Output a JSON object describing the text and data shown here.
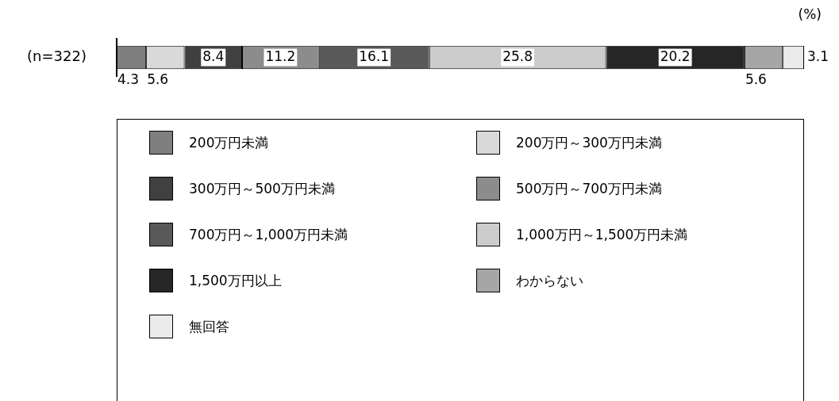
{
  "chart_data": {
    "type": "bar",
    "orientation": "horizontal",
    "stacked": true,
    "categories": [
      "(n=322)"
    ],
    "series": [
      {
        "name": "200万円未満",
        "color": "#7f7f7f",
        "values": [
          4.3
        ]
      },
      {
        "name": "200万円～300万円未満",
        "color": "#d9d9d9",
        "values": [
          5.6
        ]
      },
      {
        "name": "300万円～500万円未満",
        "color": "#404040",
        "values": [
          8.4
        ]
      },
      {
        "name": "500万円～700万円未満",
        "color": "#8c8c8c",
        "values": [
          11.2
        ]
      },
      {
        "name": "700万円～1,000万円未満",
        "color": "#595959",
        "values": [
          16.1
        ]
      },
      {
        "name": "1,000万円～1,500万円未満",
        "color": "#cccccc",
        "values": [
          25.8
        ]
      },
      {
        "name": "1,500万円以上",
        "color": "#262626",
        "values": [
          20.2
        ]
      },
      {
        "name": "わからない",
        "color": "#a6a6a6",
        "values": [
          5.6
        ]
      },
      {
        "name": "無回答",
        "color": "#ebebeb",
        "values": [
          3.1
        ]
      }
    ],
    "annotations": [
      "(%)"
    ],
    "data_labels": true,
    "legend": "bottom",
    "tick_labels": "y"
  }
}
